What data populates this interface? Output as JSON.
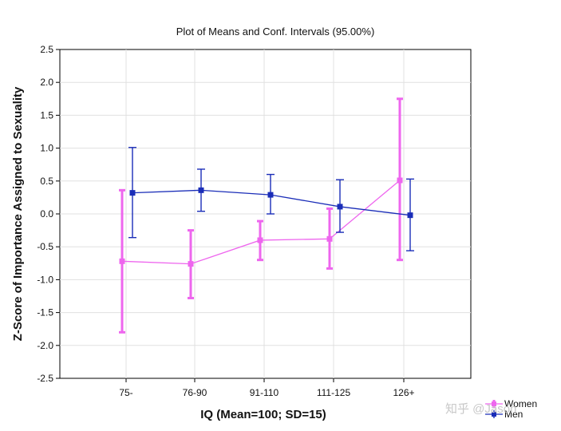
{
  "chart_data": {
    "type": "line",
    "title": "Plot of Means and Conf. Intervals (95.00%)",
    "xlabel": "IQ (Mean=100; SD=15)",
    "ylabel": "Z-Score of Importance Assigned to Sexuality",
    "categories": [
      "75-",
      "76-90",
      "91-110",
      "111-125",
      "126+"
    ],
    "ylim": [
      -2.5,
      2.5
    ],
    "yticks": [
      "2.5",
      "2.0",
      "1.5",
      "1.0",
      "0.5",
      "0.0",
      "-0.5",
      "-1.0",
      "-1.5",
      "-2.0",
      "-2.5"
    ],
    "grid": true,
    "legend_position": "bottom-right",
    "series": [
      {
        "name": "Women",
        "color": "#ee66ee",
        "marker": "square",
        "values": [
          -0.72,
          -0.76,
          -0.4,
          -0.38,
          0.51
        ],
        "ci_lower": [
          -1.8,
          -1.28,
          -0.7,
          -0.83,
          -0.7
        ],
        "ci_upper": [
          0.36,
          -0.25,
          -0.11,
          0.08,
          1.75
        ]
      },
      {
        "name": "Men",
        "color": "#1a2db8",
        "marker": "square",
        "values": [
          0.32,
          0.36,
          0.29,
          0.11,
          -0.02
        ],
        "ci_lower": [
          -0.36,
          0.04,
          0.0,
          -0.28,
          -0.56
        ],
        "ci_upper": [
          1.01,
          0.68,
          0.6,
          0.52,
          0.53
        ]
      }
    ]
  },
  "watermark": "知乎 @Jason"
}
